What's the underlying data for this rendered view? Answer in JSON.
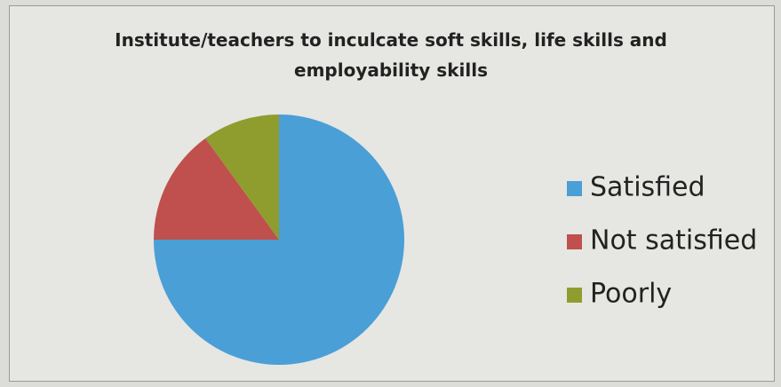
{
  "chart_data": {
    "type": "pie",
    "title": "Institute/teachers to inculcate soft skills, life skills and employability skills",
    "categories": [
      "Satisfied",
      "Not satisfied",
      "Poorly"
    ],
    "values": [
      75,
      15,
      10
    ],
    "colors": [
      "#4a9fd6",
      "#c0504d",
      "#8f9d2e"
    ],
    "legend": "right"
  }
}
